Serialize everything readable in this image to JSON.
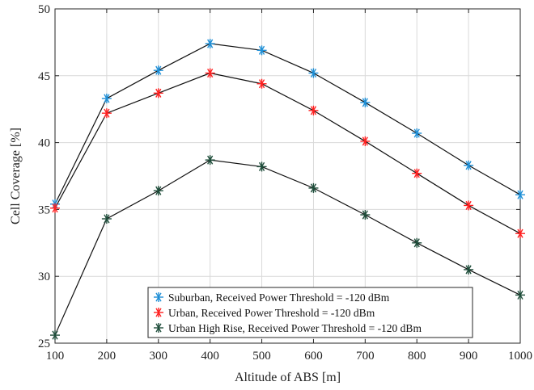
{
  "chart_data": {
    "type": "line",
    "title": "",
    "xlabel": "Altitude of ABS [m]",
    "ylabel": "Cell Coverage [%]",
    "x": [
      100,
      200,
      300,
      400,
      500,
      600,
      700,
      800,
      900,
      1000
    ],
    "xlim": [
      100,
      1000
    ],
    "ylim": [
      25,
      50
    ],
    "xticks": [
      100,
      200,
      300,
      400,
      500,
      600,
      700,
      800,
      900,
      1000
    ],
    "yticks": [
      25,
      30,
      35,
      40,
      45,
      50
    ],
    "grid": true,
    "legend_position": "bottom-center",
    "series": [
      {
        "name": "Suburban, Received Power Threshold = -120 dBm",
        "color": "#1f8fd6",
        "marker": "asterisk",
        "values": [
          35.4,
          43.3,
          45.4,
          47.4,
          46.9,
          45.2,
          43.0,
          40.7,
          38.3,
          36.1
        ]
      },
      {
        "name": "Urban, Received Power Threshold = -120 dBm",
        "color": "#ff2020",
        "marker": "asterisk",
        "values": [
          35.1,
          42.2,
          43.7,
          45.2,
          44.4,
          42.4,
          40.1,
          37.7,
          35.3,
          33.2
        ]
      },
      {
        "name": "Urban High Rise, Received Power Threshold = -120 dBm",
        "color": "#1e4d3a",
        "marker": "asterisk",
        "values": [
          25.6,
          34.3,
          36.4,
          38.7,
          38.2,
          36.6,
          34.6,
          32.5,
          30.5,
          28.6
        ]
      }
    ]
  }
}
